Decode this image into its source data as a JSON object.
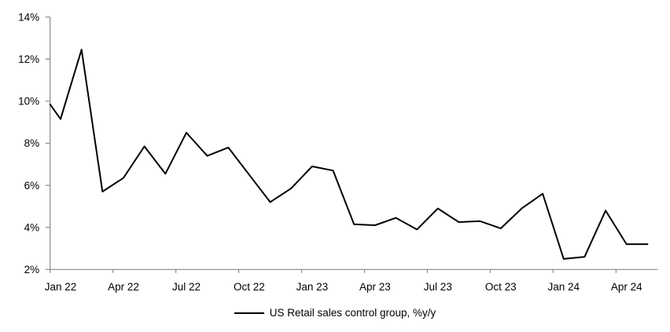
{
  "chart_data": {
    "type": "line",
    "title": "",
    "xlabel": "",
    "ylabel": "",
    "grid": "off",
    "legend": {
      "label": "US Retail sales control group, %y/y",
      "position": "bottom-center",
      "swatch": "black-line"
    },
    "x": [
      "Dec 21",
      "Jan 22",
      "Feb 22",
      "Mar 22",
      "Apr 22",
      "May 22",
      "Jun 22",
      "Jul 22",
      "Aug 22",
      "Sep 22",
      "Oct 22",
      "Nov 22",
      "Dec 22",
      "Jan 23",
      "Feb 23",
      "Mar 23",
      "Apr 23",
      "May 23",
      "Jun 23",
      "Jul 23",
      "Aug 23",
      "Sep 23",
      "Oct 23",
      "Nov 23",
      "Dec 23",
      "Jan 24",
      "Feb 24",
      "Mar 24",
      "Apr 24",
      "May 24"
    ],
    "series": [
      {
        "name": "US Retail sales control group, %y/y",
        "color": "#000000",
        "values": [
          9.85,
          9.15,
          12.45,
          5.7,
          6.35,
          7.85,
          6.55,
          8.5,
          7.4,
          7.8,
          6.5,
          5.2,
          5.85,
          6.9,
          6.7,
          4.15,
          4.1,
          4.45,
          3.9,
          4.9,
          4.25,
          4.3,
          3.95,
          4.9,
          5.6,
          2.5,
          2.6,
          4.8,
          3.2,
          3.2
        ]
      }
    ],
    "x_axis": {
      "type": "category-monthly",
      "tick_labels": [
        "Jan 22",
        "Apr 22",
        "Jul 22",
        "Oct 22",
        "Jan 23",
        "Apr 23",
        "Jul 23",
        "Oct 23",
        "Jan 24",
        "Apr 24"
      ],
      "tick_interval_months": 3,
      "first_point_on_axis_edge": true
    },
    "y_axis": {
      "min": 2,
      "max": 14,
      "step": 2,
      "tick_labels": [
        "2%",
        "4%",
        "6%",
        "8%",
        "10%",
        "12%",
        "14%"
      ]
    },
    "colors": {
      "line": "#000000",
      "axis": "#898989",
      "text": "#000000",
      "background": "#FFFFFF"
    }
  }
}
